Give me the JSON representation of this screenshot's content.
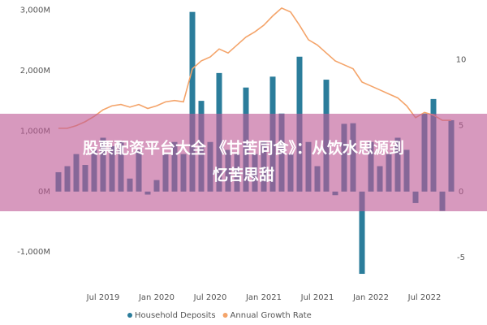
{
  "chart_data": {
    "type": "bar_line",
    "categories": [
      null,
      null,
      null,
      null,
      null,
      "Jul 2019",
      null,
      null,
      null,
      null,
      null,
      "Jan 2020",
      null,
      null,
      null,
      null,
      null,
      "Jul 2020",
      null,
      null,
      null,
      null,
      null,
      "Jan 2021",
      null,
      null,
      null,
      null,
      null,
      "Jul 2021",
      null,
      null,
      null,
      null,
      null,
      "Jan 2022",
      null,
      null,
      null,
      null,
      null,
      "Jul 2022",
      null,
      null,
      null
    ],
    "series": [
      {
        "name": "Household Deposits",
        "color": "#2b7d9b",
        "axis": "y",
        "values": [
          320,
          420,
          620,
          440,
          690,
          890,
          750,
          820,
          215,
          690,
          -50,
          190,
          620,
          820,
          620,
          2970,
          1500,
          820,
          1960,
          690,
          620,
          1720,
          620,
          820,
          1900,
          1290,
          620,
          2230,
          820,
          420,
          1850,
          -60,
          1120,
          1130,
          -1360,
          820,
          420,
          620,
          890,
          690,
          -190,
          1290,
          1530,
          -320,
          1180
        ]
      },
      {
        "name": "Annual Growth Rate",
        "color": "#f4a46a",
        "axis": "y2",
        "values": [
          4.8,
          4.8,
          5.0,
          5.3,
          5.7,
          6.2,
          6.5,
          6.6,
          6.4,
          6.6,
          6.3,
          6.5,
          6.8,
          6.9,
          6.8,
          9.3,
          9.9,
          10.2,
          10.8,
          10.5,
          11.1,
          11.7,
          12.1,
          12.6,
          13.3,
          13.9,
          13.6,
          12.6,
          11.5,
          11.1,
          10.5,
          9.9,
          9.6,
          9.3,
          8.3,
          8.0,
          7.7,
          7.4,
          7.1,
          6.5,
          5.6,
          6.0,
          5.8,
          5.4,
          5.4
        ]
      }
    ],
    "ylim": [
      -1400,
      3100
    ],
    "yticks": [
      {
        "value": -1000,
        "label": "-1,000M"
      },
      {
        "value": 0,
        "label": "0M"
      },
      {
        "value": 1000,
        "label": "1,000M"
      },
      {
        "value": 2000,
        "label": "2,000M"
      },
      {
        "value": 3000,
        "label": "3,000M"
      }
    ],
    "y2lim": [
      -6.4,
      14.2
    ],
    "y2ticks": [
      -5,
      0,
      5,
      10
    ],
    "grid": false
  },
  "overlay": {
    "lines": [
      "股票配资平台大全 《甘苦同食》：从饮水思源到",
      "忆苦思甜"
    ]
  }
}
